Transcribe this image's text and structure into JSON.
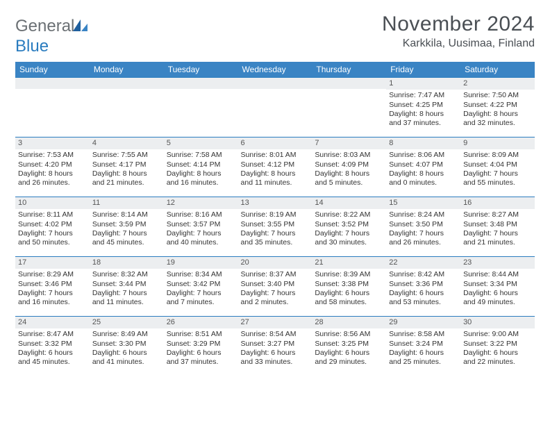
{
  "brand": {
    "part1": "General",
    "part2": "Blue"
  },
  "title": "November 2024",
  "location": "Karkkila, Uusimaa, Finland",
  "colors": {
    "header_bg": "#3a84c4",
    "row_border": "#2a7cbf",
    "daynum_bg": "#eceef0",
    "text": "#333333"
  },
  "day_headers": [
    "Sunday",
    "Monday",
    "Tuesday",
    "Wednesday",
    "Thursday",
    "Friday",
    "Saturday"
  ],
  "weeks": [
    [
      {
        "n": "",
        "sr": "",
        "ss": "",
        "dl": ""
      },
      {
        "n": "",
        "sr": "",
        "ss": "",
        "dl": ""
      },
      {
        "n": "",
        "sr": "",
        "ss": "",
        "dl": ""
      },
      {
        "n": "",
        "sr": "",
        "ss": "",
        "dl": ""
      },
      {
        "n": "",
        "sr": "",
        "ss": "",
        "dl": ""
      },
      {
        "n": "1",
        "sr": "Sunrise: 7:47 AM",
        "ss": "Sunset: 4:25 PM",
        "dl": "Daylight: 8 hours and 37 minutes."
      },
      {
        "n": "2",
        "sr": "Sunrise: 7:50 AM",
        "ss": "Sunset: 4:22 PM",
        "dl": "Daylight: 8 hours and 32 minutes."
      }
    ],
    [
      {
        "n": "3",
        "sr": "Sunrise: 7:53 AM",
        "ss": "Sunset: 4:20 PM",
        "dl": "Daylight: 8 hours and 26 minutes."
      },
      {
        "n": "4",
        "sr": "Sunrise: 7:55 AM",
        "ss": "Sunset: 4:17 PM",
        "dl": "Daylight: 8 hours and 21 minutes."
      },
      {
        "n": "5",
        "sr": "Sunrise: 7:58 AM",
        "ss": "Sunset: 4:14 PM",
        "dl": "Daylight: 8 hours and 16 minutes."
      },
      {
        "n": "6",
        "sr": "Sunrise: 8:01 AM",
        "ss": "Sunset: 4:12 PM",
        "dl": "Daylight: 8 hours and 11 minutes."
      },
      {
        "n": "7",
        "sr": "Sunrise: 8:03 AM",
        "ss": "Sunset: 4:09 PM",
        "dl": "Daylight: 8 hours and 5 minutes."
      },
      {
        "n": "8",
        "sr": "Sunrise: 8:06 AM",
        "ss": "Sunset: 4:07 PM",
        "dl": "Daylight: 8 hours and 0 minutes."
      },
      {
        "n": "9",
        "sr": "Sunrise: 8:09 AM",
        "ss": "Sunset: 4:04 PM",
        "dl": "Daylight: 7 hours and 55 minutes."
      }
    ],
    [
      {
        "n": "10",
        "sr": "Sunrise: 8:11 AM",
        "ss": "Sunset: 4:02 PM",
        "dl": "Daylight: 7 hours and 50 minutes."
      },
      {
        "n": "11",
        "sr": "Sunrise: 8:14 AM",
        "ss": "Sunset: 3:59 PM",
        "dl": "Daylight: 7 hours and 45 minutes."
      },
      {
        "n": "12",
        "sr": "Sunrise: 8:16 AM",
        "ss": "Sunset: 3:57 PM",
        "dl": "Daylight: 7 hours and 40 minutes."
      },
      {
        "n": "13",
        "sr": "Sunrise: 8:19 AM",
        "ss": "Sunset: 3:55 PM",
        "dl": "Daylight: 7 hours and 35 minutes."
      },
      {
        "n": "14",
        "sr": "Sunrise: 8:22 AM",
        "ss": "Sunset: 3:52 PM",
        "dl": "Daylight: 7 hours and 30 minutes."
      },
      {
        "n": "15",
        "sr": "Sunrise: 8:24 AM",
        "ss": "Sunset: 3:50 PM",
        "dl": "Daylight: 7 hours and 26 minutes."
      },
      {
        "n": "16",
        "sr": "Sunrise: 8:27 AM",
        "ss": "Sunset: 3:48 PM",
        "dl": "Daylight: 7 hours and 21 minutes."
      }
    ],
    [
      {
        "n": "17",
        "sr": "Sunrise: 8:29 AM",
        "ss": "Sunset: 3:46 PM",
        "dl": "Daylight: 7 hours and 16 minutes."
      },
      {
        "n": "18",
        "sr": "Sunrise: 8:32 AM",
        "ss": "Sunset: 3:44 PM",
        "dl": "Daylight: 7 hours and 11 minutes."
      },
      {
        "n": "19",
        "sr": "Sunrise: 8:34 AM",
        "ss": "Sunset: 3:42 PM",
        "dl": "Daylight: 7 hours and 7 minutes."
      },
      {
        "n": "20",
        "sr": "Sunrise: 8:37 AM",
        "ss": "Sunset: 3:40 PM",
        "dl": "Daylight: 7 hours and 2 minutes."
      },
      {
        "n": "21",
        "sr": "Sunrise: 8:39 AM",
        "ss": "Sunset: 3:38 PM",
        "dl": "Daylight: 6 hours and 58 minutes."
      },
      {
        "n": "22",
        "sr": "Sunrise: 8:42 AM",
        "ss": "Sunset: 3:36 PM",
        "dl": "Daylight: 6 hours and 53 minutes."
      },
      {
        "n": "23",
        "sr": "Sunrise: 8:44 AM",
        "ss": "Sunset: 3:34 PM",
        "dl": "Daylight: 6 hours and 49 minutes."
      }
    ],
    [
      {
        "n": "24",
        "sr": "Sunrise: 8:47 AM",
        "ss": "Sunset: 3:32 PM",
        "dl": "Daylight: 6 hours and 45 minutes."
      },
      {
        "n": "25",
        "sr": "Sunrise: 8:49 AM",
        "ss": "Sunset: 3:30 PM",
        "dl": "Daylight: 6 hours and 41 minutes."
      },
      {
        "n": "26",
        "sr": "Sunrise: 8:51 AM",
        "ss": "Sunset: 3:29 PM",
        "dl": "Daylight: 6 hours and 37 minutes."
      },
      {
        "n": "27",
        "sr": "Sunrise: 8:54 AM",
        "ss": "Sunset: 3:27 PM",
        "dl": "Daylight: 6 hours and 33 minutes."
      },
      {
        "n": "28",
        "sr": "Sunrise: 8:56 AM",
        "ss": "Sunset: 3:25 PM",
        "dl": "Daylight: 6 hours and 29 minutes."
      },
      {
        "n": "29",
        "sr": "Sunrise: 8:58 AM",
        "ss": "Sunset: 3:24 PM",
        "dl": "Daylight: 6 hours and 25 minutes."
      },
      {
        "n": "30",
        "sr": "Sunrise: 9:00 AM",
        "ss": "Sunset: 3:22 PM",
        "dl": "Daylight: 6 hours and 22 minutes."
      }
    ]
  ]
}
